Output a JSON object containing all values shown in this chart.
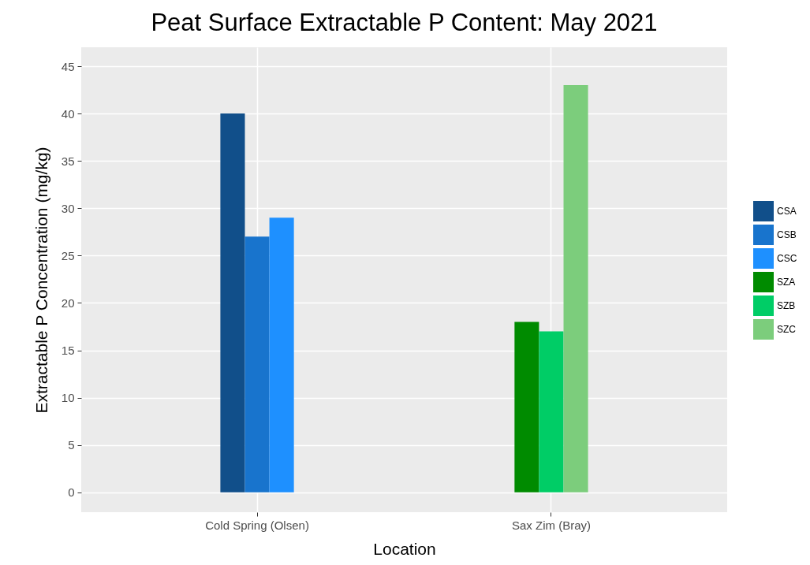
{
  "chart_data": {
    "type": "bar",
    "title": "Peat Surface Extractable P Content: May 2021",
    "xlabel": "Location",
    "ylabel": "Extractable P Concentration (mg/kg)",
    "categories": [
      "Cold Spring (Olsen)",
      "Sax Zim (Bray)"
    ],
    "series": [
      {
        "name": "CSA",
        "color": "#114f8a",
        "values": [
          40,
          null
        ]
      },
      {
        "name": "CSB",
        "color": "#1874cd",
        "values": [
          27,
          null
        ]
      },
      {
        "name": "CSC",
        "color": "#1e90ff",
        "values": [
          29,
          null
        ]
      },
      {
        "name": "SZA",
        "color": "#008b00",
        "values": [
          null,
          18
        ]
      },
      {
        "name": "SZB",
        "color": "#00cd66",
        "values": [
          null,
          17
        ]
      },
      {
        "name": "SZC",
        "color": "#7ccd7c",
        "values": [
          null,
          43
        ]
      }
    ],
    "ylim": [
      -2.1,
      47
    ],
    "yticks": [
      0,
      5,
      10,
      15,
      20,
      25,
      30,
      35,
      40,
      45
    ],
    "grid": true,
    "legend": "right"
  }
}
